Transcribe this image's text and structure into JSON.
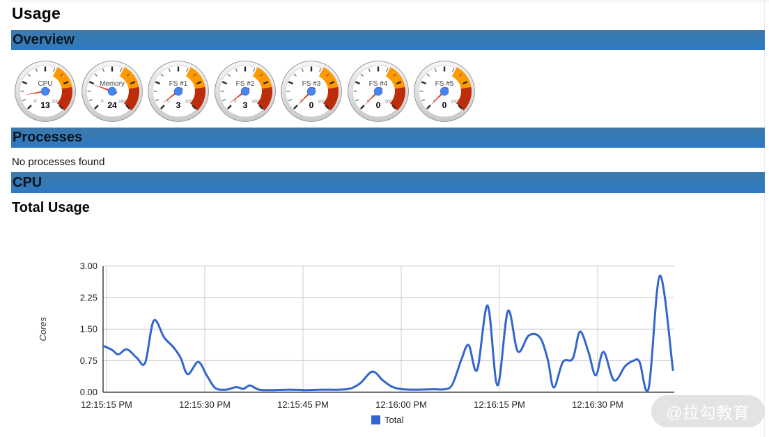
{
  "page": {
    "title": "Usage"
  },
  "sections": {
    "overview": {
      "title": "Overview"
    },
    "processes": {
      "title": "Processes",
      "empty_text": "No processes found"
    },
    "cpu": {
      "title": "CPU",
      "subtitle": "Total Usage"
    }
  },
  "gauges": {
    "scale_min_label": "0",
    "scale_max_label": "100",
    "zones": [
      {
        "from": 60,
        "to": 80,
        "color": "#FF9900"
      },
      {
        "from": 80,
        "to": 100,
        "color": "#C02B09"
      }
    ],
    "needle_color": "#D64426",
    "hub_color": "#4684EE",
    "items": [
      {
        "label": "CPU",
        "value": 13
      },
      {
        "label": "Memory",
        "value": 24
      },
      {
        "label": "FS #1",
        "value": 3
      },
      {
        "label": "FS #2",
        "value": 3
      },
      {
        "label": "FS #3",
        "value": 0
      },
      {
        "label": "FS #4",
        "value": 0
      },
      {
        "label": "FS #5",
        "value": 0
      }
    ]
  },
  "chart_data": {
    "type": "line",
    "title": "Total Usage",
    "xlabel": "",
    "ylabel": "Cores",
    "ylim": [
      0,
      3
    ],
    "yticks": [
      0,
      0.75,
      1.5,
      2.25,
      3
    ],
    "ytick_labels": [
      "0.00",
      "0.75",
      "1.50",
      "2.25",
      "3.00"
    ],
    "x_domain_seconds": [
      -0.53,
      86.7
    ],
    "xticks_seconds": [
      0,
      15,
      30,
      45,
      60,
      75
    ],
    "xtick_labels": [
      "12:15:15 PM",
      "12:15:30 PM",
      "12:15:45 PM",
      "12:16:00 PM",
      "12:16:15 PM",
      "12:16:30 PM"
    ],
    "grid": true,
    "grid_color": "#cccccc",
    "axis_color": "#333333",
    "legend": {
      "position": "bottom",
      "items": [
        {
          "label": "Total",
          "color": "#3366CC"
        }
      ]
    },
    "series": [
      {
        "name": "Total",
        "color": "#3366CC",
        "points": [
          [
            -0.5,
            1.1
          ],
          [
            0.8,
            1.01
          ],
          [
            1.8,
            0.9
          ],
          [
            3.1,
            1.02
          ],
          [
            4.6,
            0.82
          ],
          [
            5.9,
            0.7
          ],
          [
            7.2,
            1.7
          ],
          [
            8.8,
            1.3
          ],
          [
            10.2,
            1.07
          ],
          [
            11.3,
            0.82
          ],
          [
            12.4,
            0.43
          ],
          [
            14.0,
            0.72
          ],
          [
            15.3,
            0.4
          ],
          [
            16.6,
            0.1
          ],
          [
            18.2,
            0.06
          ],
          [
            19.8,
            0.12
          ],
          [
            20.9,
            0.08
          ],
          [
            21.9,
            0.16
          ],
          [
            23.3,
            0.06
          ],
          [
            25.5,
            0.05
          ],
          [
            28.0,
            0.06
          ],
          [
            30.5,
            0.05
          ],
          [
            33.0,
            0.06
          ],
          [
            35.5,
            0.06
          ],
          [
            37.3,
            0.09
          ],
          [
            38.8,
            0.22
          ],
          [
            40.6,
            0.49
          ],
          [
            42.2,
            0.28
          ],
          [
            43.6,
            0.13
          ],
          [
            45.2,
            0.07
          ],
          [
            47.5,
            0.06
          ],
          [
            50.0,
            0.07
          ],
          [
            51.6,
            0.07
          ],
          [
            52.8,
            0.18
          ],
          [
            54.2,
            0.78
          ],
          [
            55.3,
            1.12
          ],
          [
            56.6,
            0.53
          ],
          [
            58.2,
            2.06
          ],
          [
            59.7,
            0.16
          ],
          [
            61.3,
            1.93
          ],
          [
            62.8,
            0.97
          ],
          [
            64.5,
            1.35
          ],
          [
            66.2,
            1.3
          ],
          [
            67.4,
            0.76
          ],
          [
            68.3,
            0.11
          ],
          [
            69.7,
            0.72
          ],
          [
            71.2,
            0.8
          ],
          [
            72.3,
            1.44
          ],
          [
            73.6,
            0.95
          ],
          [
            74.7,
            0.4
          ],
          [
            75.9,
            0.96
          ],
          [
            77.5,
            0.28
          ],
          [
            79.2,
            0.62
          ],
          [
            80.5,
            0.75
          ],
          [
            81.4,
            0.72
          ],
          [
            82.8,
            0.1
          ],
          [
            84.5,
            2.77
          ],
          [
            86.5,
            0.53
          ]
        ]
      }
    ]
  },
  "watermark": {
    "text": "@拉勾教育"
  }
}
